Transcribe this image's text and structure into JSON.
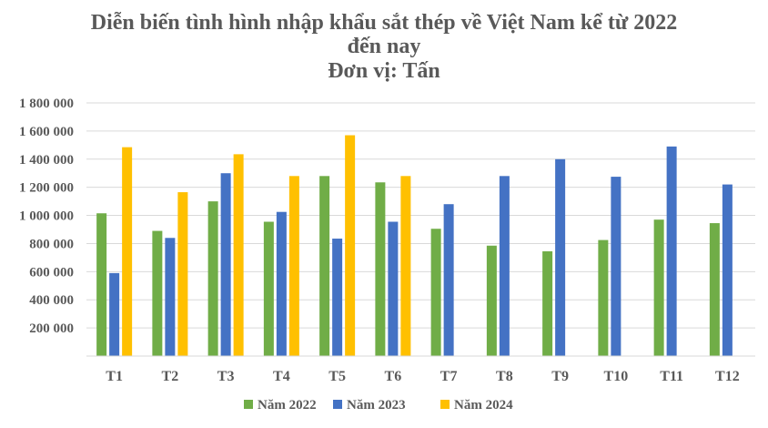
{
  "chart_data": {
    "type": "bar",
    "title_lines": [
      "Diễn biến tình hình nhập khẩu sắt thép về Việt Nam kể từ 2022",
      "đến nay",
      "Đơn vị: Tấn"
    ],
    "categories": [
      "T1",
      "T2",
      "T3",
      "T4",
      "T5",
      "T6",
      "T7",
      "T8",
      "T9",
      "T10",
      "T11",
      "T12"
    ],
    "series": [
      {
        "name": "Năm 2022",
        "color": "#70AD47",
        "values": [
          1015000,
          890000,
          1100000,
          955000,
          1280000,
          1235000,
          905000,
          785000,
          745000,
          825000,
          970000,
          945000
        ]
      },
      {
        "name": "Năm 2023",
        "color": "#4472C4",
        "values": [
          590000,
          840000,
          1300000,
          1025000,
          835000,
          955000,
          1080000,
          1280000,
          1400000,
          1275000,
          1490000,
          1220000
        ]
      },
      {
        "name": "Năm 2024",
        "color": "#FFC000",
        "values": [
          1485000,
          1165000,
          1435000,
          1280000,
          1570000,
          1280000,
          null,
          null,
          null,
          null,
          null,
          null
        ]
      }
    ],
    "ylim": [
      0,
      1800000
    ],
    "yticks": [
      0,
      200000,
      400000,
      600000,
      800000,
      1000000,
      1200000,
      1400000,
      1600000,
      1800000
    ],
    "ytick_labels": [
      "",
      "200 000",
      "400 000",
      "600 000",
      "800 000",
      "1 000 000",
      "1 200 000",
      "1 400 000",
      "1 600 000",
      "1 800 000"
    ],
    "grid": true,
    "legend_position": "bottom",
    "xlabel": "",
    "ylabel": ""
  }
}
